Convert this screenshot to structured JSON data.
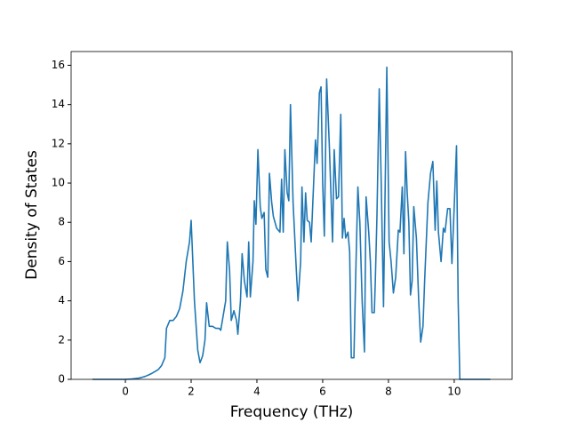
{
  "chart_data": {
    "type": "line",
    "xlabel": "Frequency (THz)",
    "ylabel": "Density of States",
    "x": [
      -1.0,
      0,
      0.2,
      0.4,
      0.5,
      0.6,
      0.7,
      0.8,
      0.9,
      1.0,
      1.1,
      1.2,
      1.25,
      1.35,
      1.45,
      1.55,
      1.65,
      1.75,
      1.85,
      1.95,
      2.0,
      2.1,
      2.2,
      2.27,
      2.35,
      2.42,
      2.47,
      2.55,
      2.65,
      2.75,
      2.85,
      2.9,
      3.0,
      3.05,
      3.1,
      3.17,
      3.22,
      3.3,
      3.38,
      3.42,
      3.5,
      3.55,
      3.62,
      3.7,
      3.75,
      3.8,
      3.88,
      3.92,
      3.97,
      4.03,
      4.1,
      4.15,
      4.22,
      4.27,
      4.33,
      4.38,
      4.45,
      4.5,
      4.6,
      4.7,
      4.75,
      4.8,
      4.85,
      4.92,
      4.97,
      5.02,
      5.1,
      5.2,
      5.25,
      5.33,
      5.37,
      5.43,
      5.48,
      5.53,
      5.6,
      5.65,
      5.7,
      5.78,
      5.83,
      5.9,
      5.95,
      6.0,
      6.05,
      6.12,
      6.2,
      6.25,
      6.3,
      6.35,
      6.42,
      6.48,
      6.55,
      6.6,
      6.65,
      6.7,
      6.77,
      6.82,
      6.87,
      6.95,
      7.0,
      7.07,
      7.13,
      7.2,
      7.27,
      7.32,
      7.4,
      7.45,
      7.5,
      7.57,
      7.6,
      7.65,
      7.72,
      7.78,
      7.85,
      7.95,
      8.02,
      8.08,
      8.15,
      8.22,
      8.3,
      8.35,
      8.42,
      8.47,
      8.52,
      8.57,
      8.62,
      8.67,
      8.72,
      8.77,
      8.85,
      8.92,
      8.98,
      9.05,
      9.1,
      9.2,
      9.28,
      9.35,
      9.42,
      9.47,
      9.52,
      9.6,
      9.67,
      9.72,
      9.8,
      9.87,
      9.93,
      10.0,
      10.07,
      10.12,
      10.17,
      11.1
    ],
    "series": [
      {
        "color": "#1f77b4",
        "values": [
          0,
          0,
          0.02,
          0.06,
          0.1,
          0.15,
          0.22,
          0.3,
          0.4,
          0.5,
          0.7,
          1.1,
          2.6,
          3.0,
          3.0,
          3.2,
          3.6,
          4.5,
          6.0,
          7.0,
          8.1,
          4.0,
          1.5,
          0.85,
          1.2,
          2.0,
          3.9,
          2.7,
          2.7,
          2.6,
          2.6,
          2.5,
          3.5,
          4.0,
          7.0,
          5.5,
          3.0,
          3.5,
          3.0,
          2.3,
          4.0,
          6.4,
          5.0,
          4.2,
          7.0,
          4.2,
          6.0,
          9.1,
          7.9,
          11.7,
          8.8,
          8.2,
          8.5,
          5.6,
          5.2,
          10.5,
          9.0,
          8.3,
          7.7,
          7.5,
          10.2,
          7.5,
          11.7,
          9.5,
          9.1,
          14.0,
          9.0,
          5.5,
          4.0,
          6.0,
          9.8,
          7.0,
          9.5,
          8.1,
          8.0,
          7.0,
          9.0,
          12.2,
          11.0,
          14.6,
          14.9,
          10.0,
          7.3,
          15.3,
          12.0,
          9.5,
          7.0,
          11.7,
          9.2,
          9.3,
          13.5,
          7.2,
          8.2,
          7.2,
          7.5,
          6.5,
          1.1,
          1.1,
          5.0,
          9.8,
          8.0,
          4.0,
          1.4,
          9.3,
          7.5,
          6.0,
          3.4,
          3.4,
          5.0,
          8.3,
          14.8,
          10.0,
          3.7,
          15.9,
          7.0,
          6.0,
          4.4,
          5.2,
          7.6,
          7.5,
          9.8,
          6.4,
          11.6,
          9.5,
          8.0,
          4.3,
          5.0,
          8.8,
          7.2,
          4.0,
          1.9,
          2.7,
          5.0,
          9.0,
          10.5,
          11.1,
          7.6,
          10.1,
          7.5,
          6.0,
          7.7,
          7.5,
          8.7,
          8.7,
          5.9,
          8.8,
          11.9,
          4.0,
          0,
          0
        ]
      }
    ],
    "xlim": [
      -1.65,
      11.76
    ],
    "xticks": [
      0,
      2,
      4,
      6,
      8,
      10
    ],
    "ylim": [
      0,
      16.7
    ],
    "yticks": [
      0,
      2,
      4,
      6,
      8,
      10,
      12,
      14,
      16
    ]
  }
}
